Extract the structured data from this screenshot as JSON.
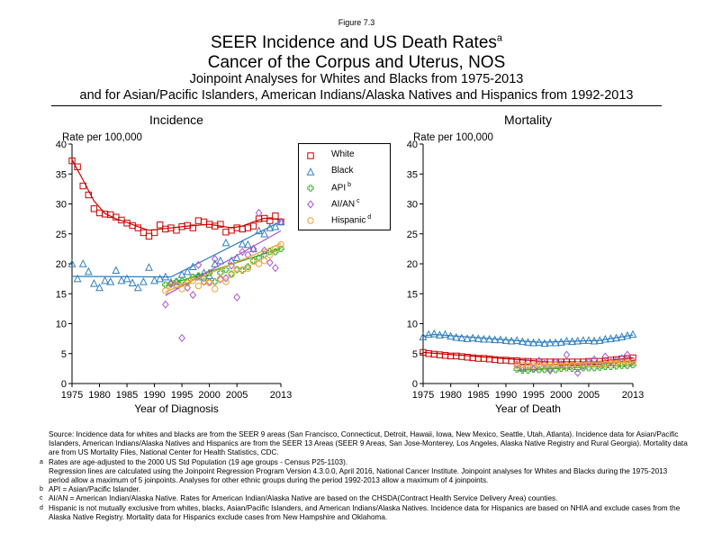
{
  "header": {
    "figure_label": "Figure 7.3",
    "title_main": "SEER Incidence and US Death Rates",
    "title_sup": "a",
    "title_site": "Cancer of the Corpus and Uterus, NOS",
    "subtitle_1": "Joinpoint Analyses for Whites and Blacks from 1975-2013",
    "subtitle_2": "and for Asian/Pacific Islanders, American Indians/Alaska Natives and Hispanics from 1992-2013"
  },
  "legend": {
    "items": [
      {
        "label": "White",
        "sup": "",
        "color": "#cc0000",
        "marker": "square"
      },
      {
        "label": "Black",
        "sup": "",
        "color": "#2f7fbf",
        "marker": "triangle"
      },
      {
        "label": "API",
        "sup": "b",
        "color": "#33aa22",
        "marker": "plus"
      },
      {
        "label": "AI/AN",
        "sup": "c",
        "color": "#aa55cc",
        "marker": "diamond"
      },
      {
        "label": "Hispanic",
        "sup": "d",
        "color": "#f0a030",
        "marker": "circle"
      }
    ]
  },
  "footnotes": {
    "source": "Source:  Incidence data for whites and blacks are from the SEER 9 areas (San Francisco, Connecticut, Detroit, Hawaii, Iowa, New Mexico, Seattle, Utah, Atlanta). Incidence data for Asian/Pacific Islanders, American Indians/Alaska Natives and Hispanics are from the SEER 13 Areas (SEER 9 Areas, San Jose-Monterey, Los Angeles, Alaska Native Registry and Rural Georgia).  Mortality data are from US Mortality Files, National Center for Health Statistics, CDC.",
    "a_marker": "a",
    "a_text": "Rates are age-adjusted to the 2000 US Std Population (19 age groups - Census P25-1103).",
    "regression": "Regression lines are calculated using the Joinpoint Regression Program Version 4.3.0.0, April 2016, National Cancer Institute.  Joinpoint analyses for Whites and Blacks during the 1975-2013 period allow a maximum of 5 joinpoints.  Analyses for other ethnic groups during the period 1992-2013 allow a maximum of 4 joinpoints.",
    "b_marker": "b",
    "b_text": "API = Asian/Pacific Islander.",
    "c_marker": "c",
    "c_text": "AI/AN = American Indian/Alaska Native.  Rates for American Indian/Alaska Native are based on the CHSDA(Contract Health Service Delivery Area) counties.",
    "d_marker": "d",
    "d_text": "Hispanic is not mutually exclusive from whites, blacks, Asian/Pacific Islanders, and American Indians/Alaska Natives.  Incidence data for Hispanics are based on NHIA and exclude cases from the Alaska Native Registry.  Mortality data for Hispanics exclude cases from New Hampshire and Oklahoma."
  },
  "chart_data": [
    {
      "type": "scatter",
      "title": "Incidence",
      "ylabel": "Rate per 100,000",
      "xlabel": "Year of Diagnosis",
      "xlim": [
        1975,
        2013
      ],
      "ylim": [
        0,
        40
      ],
      "xticks": [
        1975,
        1980,
        1985,
        1990,
        1995,
        2000,
        2005,
        2013
      ],
      "yticks": [
        0,
        5,
        10,
        15,
        20,
        25,
        30,
        35,
        40
      ],
      "grid": false,
      "series": [
        {
          "name": "White",
          "x_start": 1975,
          "values": [
            37.2,
            36.2,
            33.0,
            31.5,
            29.2,
            28.5,
            28.3,
            28.2,
            27.8,
            27.3,
            26.8,
            26.4,
            26.0,
            25.2,
            24.6,
            25.2,
            26.5,
            25.8,
            26.0,
            25.6,
            26.2,
            26.4,
            26.0,
            27.2,
            27.0,
            26.6,
            26.3,
            26.6,
            25.3,
            25.6,
            26.0,
            25.8,
            26.0,
            26.3,
            27.5,
            27.6,
            27.2,
            28.0,
            27.0
          ],
          "fit_x": [
            1975,
            1977,
            1979,
            1981,
            1983,
            1985,
            1987,
            1989,
            1992,
            1996,
            2000,
            2004,
            2006,
            2008,
            2010,
            2013
          ],
          "fit_y": [
            37.4,
            34.0,
            30.5,
            28.4,
            27.5,
            26.9,
            26.2,
            25.6,
            25.9,
            26.3,
            26.6,
            26.0,
            26.3,
            27.0,
            27.6,
            27.4
          ]
        },
        {
          "name": "Black",
          "x_start": 1975,
          "values": [
            20.0,
            17.5,
            20.0,
            18.7,
            16.7,
            16.0,
            17.2,
            17.0,
            18.9,
            17.2,
            17.5,
            16.8,
            16.0,
            17.0,
            19.4,
            17.2,
            17.5,
            17.8,
            16.9,
            17.0,
            18.2,
            18.7,
            19.5,
            17.8,
            18.5,
            18.0,
            20.0,
            20.5,
            23.5,
            20.5,
            21.0,
            23.3,
            23.2,
            22.5,
            25.5,
            25.0,
            26.0,
            26.2,
            27.0
          ],
          "fit_x": [
            1975,
            1993,
            2013
          ],
          "fit_y": [
            17.9,
            17.8,
            27.1
          ]
        },
        {
          "name": "API",
          "x_start": 1992,
          "values": [
            16.5,
            16.7,
            17.0,
            17.1,
            17.0,
            17.8,
            18.0,
            17.6,
            18.5,
            17.0,
            18.5,
            19.0,
            18.3,
            19.0,
            18.9,
            19.5,
            20.5,
            21.0,
            21.5,
            22.0,
            22.0,
            22.5
          ],
          "fit_x": [
            1992,
            2013
          ],
          "fit_y": [
            16.3,
            22.6
          ]
        },
        {
          "name": "AI/AN",
          "x_start": 1992,
          "values": [
            13.2,
            16.6,
            16.4,
            7.6,
            16.0,
            14.8,
            19.8,
            17.0,
            17.0,
            20.8,
            17.4,
            17.6,
            19.7,
            14.4,
            22.0,
            21.5,
            22.5,
            28.5,
            22.2,
            20.2,
            19.3,
            27.0
          ],
          "fit_x": [
            1992,
            2013
          ],
          "fit_y": [
            14.7,
            25.5
          ]
        },
        {
          "name": "Hispanic",
          "x_start": 1992,
          "values": [
            15.5,
            16.2,
            16.5,
            15.8,
            16.8,
            17.2,
            16.3,
            17.0,
            16.8,
            15.8,
            17.5,
            17.0,
            18.2,
            19.1,
            19.0,
            19.2,
            20.4,
            20.0,
            20.5,
            21.5,
            22.5,
            23.2
          ],
          "fit_x": [
            1992,
            2013
          ],
          "fit_y": [
            15.3,
            23.4
          ]
        }
      ]
    },
    {
      "type": "scatter",
      "title": "Mortality",
      "ylabel": "Rate per 100,000",
      "xlabel": "Year of Death",
      "xlim": [
        1975,
        2013
      ],
      "ylim": [
        0,
        40
      ],
      "xticks": [
        1975,
        1980,
        1985,
        1990,
        1995,
        2000,
        2005,
        2013
      ],
      "yticks": [
        0,
        5,
        10,
        15,
        20,
        25,
        30,
        35,
        40
      ],
      "grid": false,
      "series": [
        {
          "name": "White",
          "x_start": 1975,
          "values": [
            5.2,
            5.0,
            4.9,
            4.8,
            4.7,
            4.6,
            4.6,
            4.5,
            4.4,
            4.3,
            4.2,
            4.2,
            4.1,
            4.0,
            3.9,
            3.9,
            3.8,
            3.8,
            3.7,
            3.7,
            3.6,
            3.6,
            3.6,
            3.6,
            3.6,
            3.6,
            3.6,
            3.6,
            3.6,
            3.6,
            3.7,
            3.7,
            3.7,
            3.8,
            3.9,
            4.0,
            4.1,
            4.2,
            4.3
          ],
          "fit_x": [
            1975,
            1998,
            2007,
            2013
          ],
          "fit_y": [
            5.2,
            3.6,
            3.7,
            4.3
          ]
        },
        {
          "name": "Black",
          "x_start": 1975,
          "values": [
            7.8,
            8.2,
            8.3,
            8.1,
            8.2,
            7.9,
            7.7,
            7.6,
            7.5,
            7.6,
            7.5,
            7.4,
            7.4,
            7.3,
            7.3,
            7.2,
            7.1,
            7.2,
            7.0,
            6.9,
            6.8,
            6.9,
            6.7,
            6.8,
            6.8,
            6.9,
            7.1,
            7.0,
            7.1,
            7.2,
            7.2,
            7.1,
            7.2,
            7.4,
            7.5,
            7.6,
            7.8,
            8.0,
            8.2
          ],
          "fit_x": [
            1975,
            1977,
            1996,
            2007,
            2013
          ],
          "fit_y": [
            7.9,
            8.2,
            6.9,
            7.2,
            8.1
          ]
        },
        {
          "name": "API",
          "x_start": 1992,
          "values": [
            2.4,
            2.2,
            2.2,
            2.4,
            2.3,
            2.3,
            2.4,
            2.3,
            2.5,
            2.6,
            2.5,
            2.5,
            2.6,
            2.6,
            2.6,
            2.7,
            2.8,
            2.8,
            2.9,
            3.0,
            3.0,
            3.1
          ],
          "fit_x": [
            1992,
            2013
          ],
          "fit_y": [
            2.2,
            3.1
          ]
        },
        {
          "name": "AI/AN",
          "x_start": 1992,
          "values": [
            3.2,
            2.6,
            3.5,
            2.5,
            3.8,
            3.3,
            2.2,
            3.6,
            3.2,
            4.8,
            3.0,
            1.8,
            3.0,
            3.6,
            4.0,
            3.2,
            4.5,
            3.6,
            3.9,
            4.2,
            4.8,
            3.8
          ],
          "fit_x": [
            1992,
            2013
          ],
          "fit_y": [
            3.0,
            3.7
          ]
        },
        {
          "name": "Hispanic",
          "x_start": 1992,
          "values": [
            3.0,
            3.1,
            3.0,
            3.0,
            3.1,
            3.0,
            3.1,
            3.1,
            3.0,
            3.1,
            3.1,
            3.2,
            3.2,
            3.2,
            3.2,
            3.3,
            3.3,
            3.4,
            3.4,
            3.5,
            3.5,
            3.6
          ],
          "fit_x": [
            1992,
            2013
          ],
          "fit_y": [
            3.0,
            3.6
          ]
        }
      ]
    }
  ]
}
